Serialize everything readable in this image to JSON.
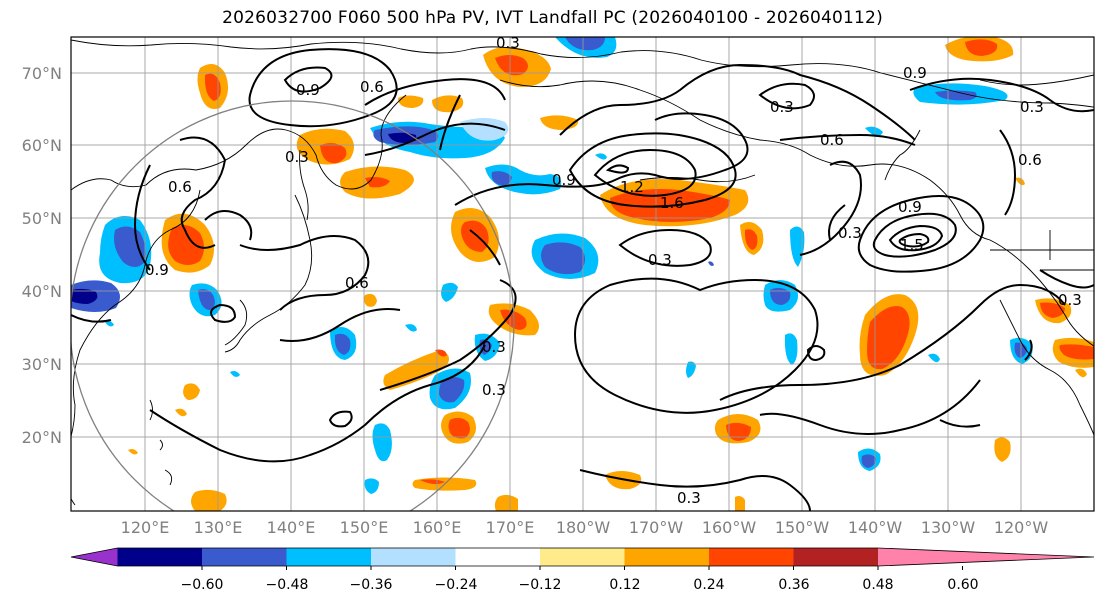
{
  "title": "2026032700 F060 500 hPa PV, IVT Landfall PC (2026040100 - 2026040112)",
  "lat_labels": [
    "70°N",
    "60°N",
    "50°N",
    "40°N",
    "30°N",
    "20°N"
  ],
  "lon_labels": [
    "120°E",
    "130°E",
    "140°E",
    "150°E",
    "160°E",
    "170°E",
    "180°W",
    "170°W",
    "160°W",
    "150°W",
    "140°W",
    "130°W",
    "120°W"
  ],
  "colorbar": {
    "colors": [
      "#9932cc",
      "#00008b",
      "#3a5bcd",
      "#00bfff",
      "#b3e0ff",
      "#ffffff",
      "#ffeb8a",
      "#ffa500",
      "#ff4500",
      "#b22222",
      "#ff82ab"
    ],
    "ticks": [
      "−0.60",
      "−0.48",
      "−0.36",
      "−0.24",
      "−0.12",
      "0.12",
      "0.24",
      "0.36",
      "0.48",
      "0.60"
    ]
  },
  "contour_labels": [
    {
      "text": "0.3"
    },
    {
      "text": "0.9"
    },
    {
      "text": "0.6"
    },
    {
      "text": "0.3"
    },
    {
      "text": "0.6"
    },
    {
      "text": "0.9"
    },
    {
      "text": "0.6"
    },
    {
      "text": "0.3"
    },
    {
      "text": "0.3"
    },
    {
      "text": "0.9"
    },
    {
      "text": "1.2"
    },
    {
      "text": "1.6"
    },
    {
      "text": "0.3"
    },
    {
      "text": "0.6"
    },
    {
      "text": "0.9"
    },
    {
      "text": "0.3"
    },
    {
      "text": "0.9"
    },
    {
      "text": "1.5"
    },
    {
      "text": "0.6"
    },
    {
      "text": "0.3"
    },
    {
      "text": "0.3"
    },
    {
      "text": "0.3"
    },
    {
      "text": "0.3"
    }
  ]
}
